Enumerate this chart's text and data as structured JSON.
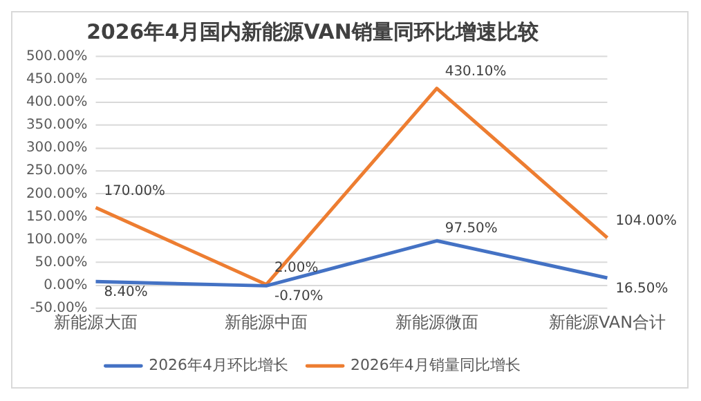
{
  "chart_data": {
    "type": "line",
    "title": "2026年4月国内新能源VAN销量同环比增速比较",
    "categories": [
      "新能源大面",
      "新能源中面",
      "新能源微面",
      "新能源VAN合计"
    ],
    "series": [
      {
        "name": "2026年4月环比增长",
        "color": "#4472c4",
        "values": [
          8.4,
          -0.7,
          97.5,
          16.5
        ],
        "value_labels": [
          "8.40%",
          "-0.70%",
          "97.50%",
          "16.50%"
        ]
      },
      {
        "name": "2026年4月销量同比增长",
        "color": "#ed7d31",
        "values": [
          170,
          2,
          430.1,
          104
        ],
        "value_labels": [
          "170.00%",
          "2.00%",
          "430.10%",
          "104.00%"
        ]
      }
    ],
    "ylim": [
      -50,
      500
    ],
    "yticks": [
      {
        "value": -50,
        "label": "-50.00%"
      },
      {
        "value": 0,
        "label": "0.00%"
      },
      {
        "value": 50,
        "label": "50.00%"
      },
      {
        "value": 100,
        "label": "100.00%"
      },
      {
        "value": 150,
        "label": "150.00%"
      },
      {
        "value": 200,
        "label": "200.00%"
      },
      {
        "value": 250,
        "label": "250.00%"
      },
      {
        "value": 300,
        "label": "300.00%"
      },
      {
        "value": 350,
        "label": "350.00%"
      },
      {
        "value": 400,
        "label": "400.00%"
      },
      {
        "value": 450,
        "label": "450.00%"
      },
      {
        "value": 500,
        "label": "500.00%"
      }
    ],
    "grid": "y",
    "legend": "bottom",
    "marker": "none",
    "line_style": "solid"
  }
}
